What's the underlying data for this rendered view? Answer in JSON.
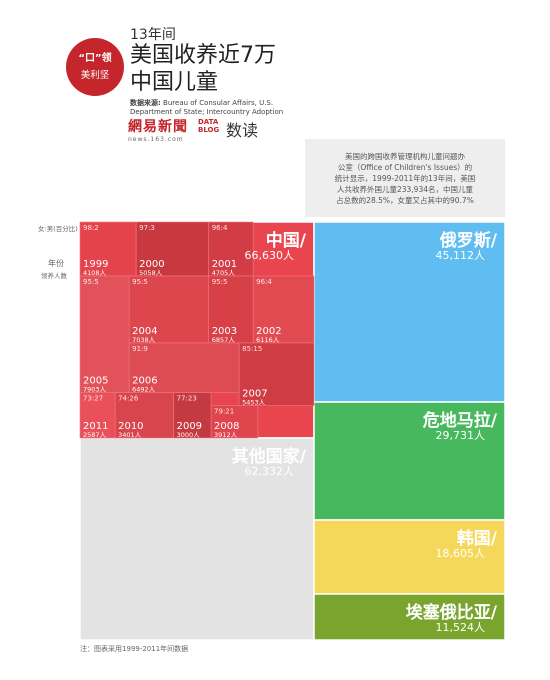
{
  "header": {
    "badge_line1": "“口”领",
    "badge_line2": "美利坚",
    "year_span": "13年间",
    "title_line1": "美国收养近7万",
    "title_line2": "中国儿童",
    "source_label": "数据来源:",
    "source_line1": "Bureau of Consular Affairs, U.S.",
    "source_line2": "Department of State; Intercountry Adoption",
    "logo_netease": "網易新聞",
    "logo_netease_url": "news.163.com",
    "logo_datablog_1": "DATA",
    "logo_datablog_2": "BLOG",
    "logo_shudu": "数读"
  },
  "description": {
    "line1": "美国的跨国收养管理机构儿童问题办",
    "line2": "公室（Office of Children's Issues）的",
    "line3": "统计显示，1999-2011年的13年间，美国",
    "line4": "人共收养外国儿童233,934名，中国儿童",
    "line5": "占总数的28.5%，女童又占其中的90.7%"
  },
  "legend": {
    "sex_ratio": "女:男(百分比)",
    "year": "年份",
    "adopted": "领养人数"
  },
  "footnote": "注：图表采用1999-2011年间数据",
  "colors": {
    "china": "#e9454e",
    "russia": "#5fbdf1",
    "guatemala": "#48b85e",
    "korea": "#f5d75a",
    "ethiopia": "#79a52e",
    "others": "#e3e3e3"
  },
  "chart_data": {
    "type": "treemap",
    "title": "13年间美国收养近7万中国儿童",
    "countries": [
      {
        "name": "中国",
        "value": 66630,
        "value_label": "66,630人",
        "color": "#e9454e"
      },
      {
        "name": "俄罗斯",
        "value": 45112,
        "value_label": "45,112人",
        "color": "#5fbdf1"
      },
      {
        "name": "危地马拉",
        "value": 29731,
        "value_label": "29,731人",
        "color": "#48b85e"
      },
      {
        "name": "韩国",
        "value": 18605,
        "value_label": "18,605人",
        "color": "#f5d75a"
      },
      {
        "name": "埃塞俄比亚",
        "value": 11524,
        "value_label": "11,524人",
        "color": "#79a52e"
      },
      {
        "name": "其他国家",
        "value": 62332,
        "value_label": "62,332人",
        "color": "#e3e3e3"
      }
    ],
    "china_years": [
      {
        "year": "2000",
        "count": 5058,
        "count_label": "5058人",
        "ratio": "97:3"
      },
      {
        "year": "2004",
        "count": 7038,
        "count_label": "7038人",
        "ratio": "95:5"
      },
      {
        "year": "2003",
        "count": 6857,
        "count_label": "6857人",
        "ratio": "95:5"
      },
      {
        "year": "2005",
        "count": 7903,
        "count_label": "7903人",
        "ratio": "95:5"
      },
      {
        "year": "2006",
        "count": 6492,
        "count_label": "6492人",
        "ratio": "91:9"
      },
      {
        "year": "2002",
        "count": 6116,
        "count_label": "6116人",
        "ratio": "96:4"
      },
      {
        "year": "2001",
        "count": 4705,
        "count_label": "4705人",
        "ratio": "96:4"
      },
      {
        "year": "1999",
        "count": 4108,
        "count_label": "4108人",
        "ratio": "98:2"
      },
      {
        "year": "2007",
        "count": 5453,
        "count_label": "5453人",
        "ratio": "85:15"
      },
      {
        "year": "2010",
        "count": 3401,
        "count_label": "3401人",
        "ratio": "74:26"
      },
      {
        "year": "2009",
        "count": 3000,
        "count_label": "3000人",
        "ratio": "77:23"
      },
      {
        "year": "2008",
        "count": 3912,
        "count_label": "3912人",
        "ratio": "79:21"
      },
      {
        "year": "2011",
        "count": 2587,
        "count_label": "2587人",
        "ratio": "73:27"
      }
    ]
  }
}
